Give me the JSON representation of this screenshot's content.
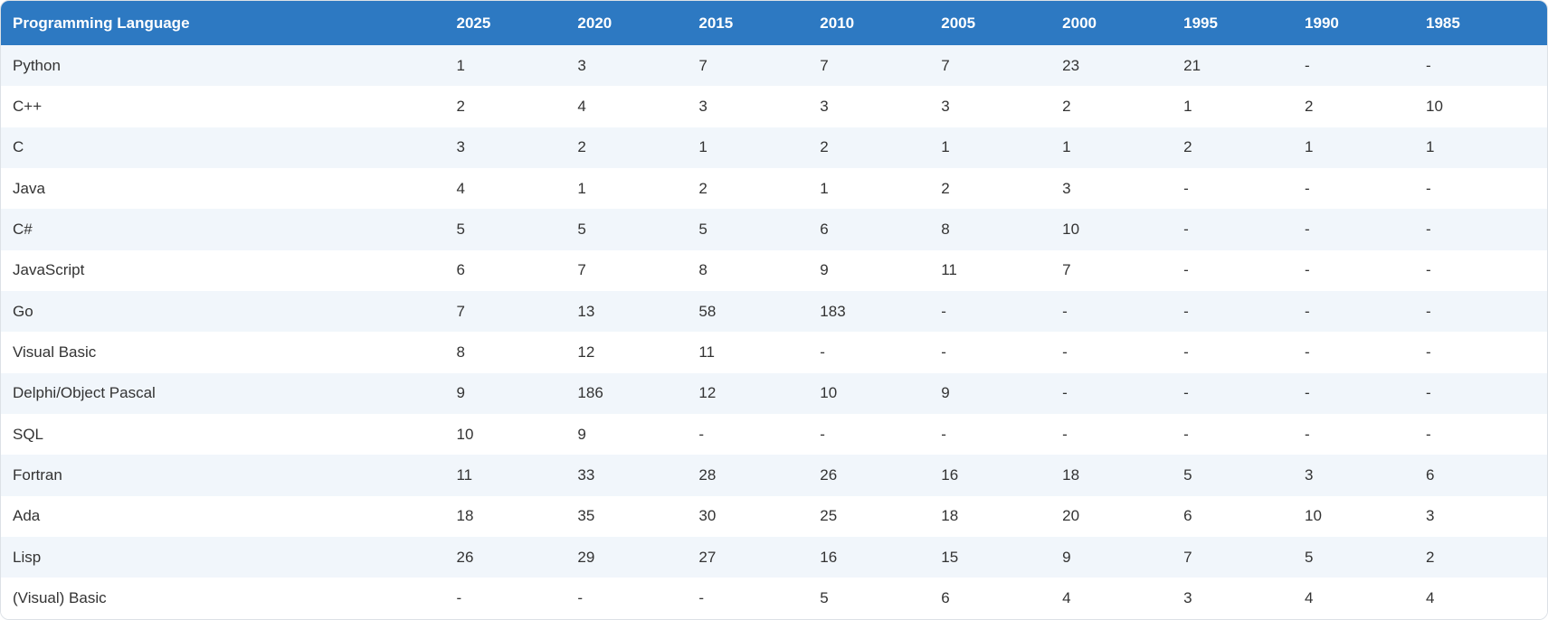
{
  "table": {
    "columns": [
      "Programming Language",
      "2025",
      "2020",
      "2015",
      "2010",
      "2005",
      "2000",
      "1995",
      "1990",
      "1985"
    ],
    "rows": [
      {
        "language": "Python",
        "ranks": [
          "1",
          "3",
          "7",
          "7",
          "7",
          "23",
          "21",
          "-",
          "-"
        ]
      },
      {
        "language": "C++",
        "ranks": [
          "2",
          "4",
          "3",
          "3",
          "3",
          "2",
          "1",
          "2",
          "10"
        ]
      },
      {
        "language": "C",
        "ranks": [
          "3",
          "2",
          "1",
          "2",
          "1",
          "1",
          "2",
          "1",
          "1"
        ]
      },
      {
        "language": "Java",
        "ranks": [
          "4",
          "1",
          "2",
          "1",
          "2",
          "3",
          "-",
          "-",
          "-"
        ]
      },
      {
        "language": "C#",
        "ranks": [
          "5",
          "5",
          "5",
          "6",
          "8",
          "10",
          "-",
          "-",
          "-"
        ]
      },
      {
        "language": "JavaScript",
        "ranks": [
          "6",
          "7",
          "8",
          "9",
          "11",
          "7",
          "-",
          "-",
          "-"
        ]
      },
      {
        "language": "Go",
        "ranks": [
          "7",
          "13",
          "58",
          "183",
          "-",
          "-",
          "-",
          "-",
          "-"
        ]
      },
      {
        "language": "Visual Basic",
        "ranks": [
          "8",
          "12",
          "11",
          "-",
          "-",
          "-",
          "-",
          "-",
          "-"
        ]
      },
      {
        "language": "Delphi/Object Pascal",
        "ranks": [
          "9",
          "186",
          "12",
          "10",
          "9",
          "-",
          "-",
          "-",
          "-"
        ]
      },
      {
        "language": "SQL",
        "ranks": [
          "10",
          "9",
          "-",
          "-",
          "-",
          "-",
          "-",
          "-",
          "-"
        ]
      },
      {
        "language": "Fortran",
        "ranks": [
          "11",
          "33",
          "28",
          "26",
          "16",
          "18",
          "5",
          "3",
          "6"
        ]
      },
      {
        "language": "Ada",
        "ranks": [
          "18",
          "35",
          "30",
          "25",
          "18",
          "20",
          "6",
          "10",
          "3"
        ]
      },
      {
        "language": "Lisp",
        "ranks": [
          "26",
          "29",
          "27",
          "16",
          "15",
          "9",
          "7",
          "5",
          "2"
        ]
      },
      {
        "language": "(Visual) Basic",
        "ranks": [
          "-",
          "-",
          "-",
          "5",
          "6",
          "4",
          "3",
          "4",
          "4"
        ]
      }
    ]
  },
  "colors": {
    "header_bg": "#2d79c2",
    "header_text": "#ffffff",
    "row_alt_bg": "#f1f6fb",
    "row_bg": "#ffffff",
    "border": "#dce1e6",
    "text": "#333333"
  }
}
